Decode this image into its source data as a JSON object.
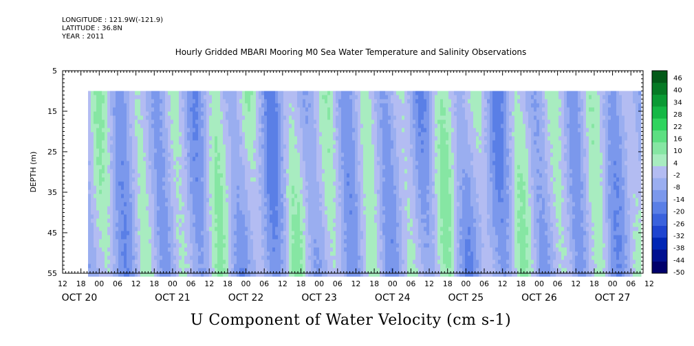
{
  "header": {
    "longitude": "LONGITUDE : 121.9W(-121.9)",
    "latitude": "LATITUDE : 36.8N",
    "year": "YEAR : 2011"
  },
  "title": "Hourly Gridded MBARI Mooring M0 Sea Water Temperature and Salinity Observations",
  "bottom_title": "U Component of Water Velocity (cm s-1)",
  "chart_data": {
    "type": "heatmap",
    "ylabel": "DEPTH (m)",
    "y_range": [
      5,
      55
    ],
    "y_ticks": [
      5,
      15,
      25,
      35,
      45,
      55
    ],
    "y_ticklabels": [
      "5",
      "15",
      "25",
      "35",
      "45",
      "55"
    ],
    "y_reversed": true,
    "data_depth_range": [
      10,
      55
    ],
    "x_hour_ticklabels": [
      "12",
      "18",
      "00",
      "06",
      "12",
      "18",
      "00",
      "06",
      "12",
      "18",
      "00",
      "06",
      "12",
      "18",
      "00",
      "06",
      "12",
      "18",
      "00",
      "06",
      "12",
      "18",
      "00",
      "06",
      "12",
      "18",
      "00",
      "06",
      "12",
      "18",
      "00",
      "06",
      "12"
    ],
    "x_day_labels": [
      "OCT 20",
      "OCT 21",
      "OCT 22",
      "OCT 23",
      "OCT 24",
      "OCT 25",
      "OCT 26",
      "OCT 27"
    ],
    "colorbar": {
      "levels": [
        -50,
        -44,
        -38,
        -32,
        -26,
        -20,
        -14,
        -8,
        -2,
        4,
        10,
        16,
        22,
        28,
        34,
        40,
        46
      ],
      "labels": [
        "46",
        "40",
        "34",
        "28",
        "22",
        "16",
        "10",
        "4",
        "-2",
        "-8",
        "-14",
        "-20",
        "-26",
        "-32",
        "-38",
        "-44",
        "-50"
      ],
      "colors": [
        "#00006b",
        "#001090",
        "#0026b5",
        "#1e44d0",
        "#3a62dd",
        "#5a7fe6",
        "#7b98ec",
        "#9aaef0",
        "#b3bcf2",
        "#a8ecc0",
        "#86e6a3",
        "#5ddf82",
        "#2fd45e",
        "#14b845",
        "#0a9a34",
        "#067a25",
        "#035a18"
      ]
    },
    "pattern": "alternating vertical bands of eastward (green, positive) and westward (blue, negative) current, roughly tidal, spanning all depths"
  }
}
